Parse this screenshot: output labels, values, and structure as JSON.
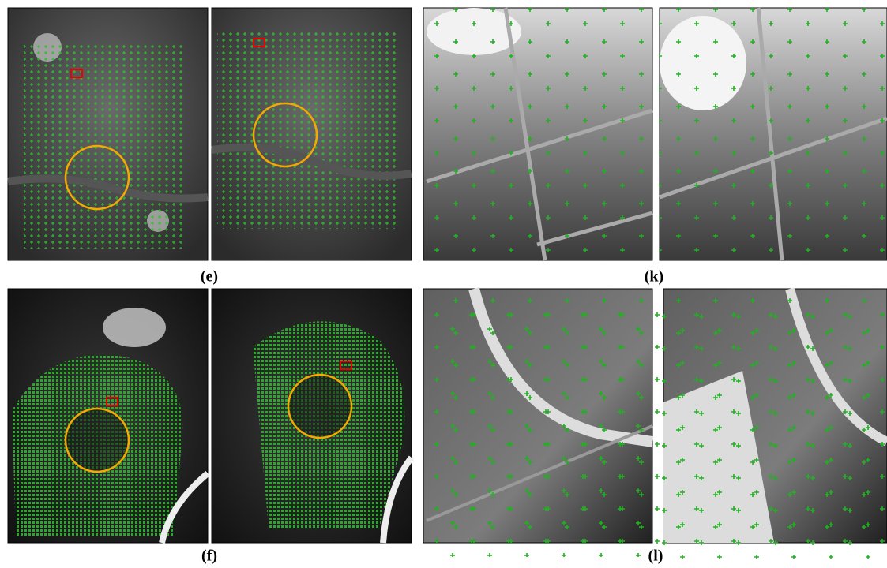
{
  "figure": {
    "panels": [
      {
        "label": "(e)"
      },
      {
        "label": "(k)"
      },
      {
        "label": "(f)"
      },
      {
        "label": "(l)"
      }
    ]
  }
}
